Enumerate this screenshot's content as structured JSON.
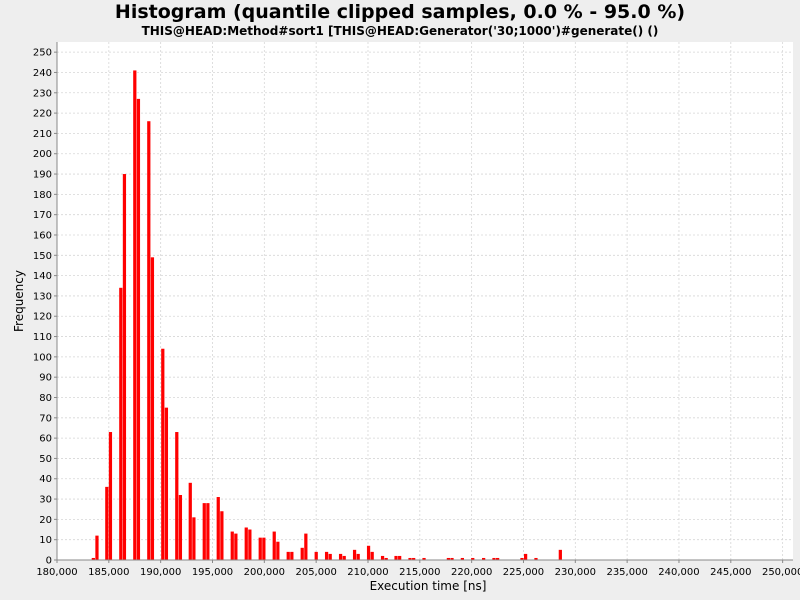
{
  "chart_data": {
    "type": "bar",
    "title": "Histogram (quantile clipped samples, 0.0 % - 95.0 %)",
    "subtitle": "THIS@HEAD:Method#sort1 [THIS@HEAD:Generator('30;1000')#generate() ()",
    "xlabel": "Execution time [ns]",
    "ylabel": "Frequency",
    "xlim": [
      180000,
      251000
    ],
    "ylim": [
      0,
      255
    ],
    "bar_color": "#ff0000",
    "grid": true,
    "x_ticks": [
      180000,
      185000,
      190000,
      195000,
      200000,
      205000,
      210000,
      215000,
      220000,
      225000,
      230000,
      235000,
      240000,
      245000,
      250000
    ],
    "x_tick_labels": [
      "180,000",
      "185,000",
      "190,000",
      "195,000",
      "200,000",
      "205,000",
      "210,000",
      "215,000",
      "220,000",
      "225,000",
      "230,000",
      "235,000",
      "240,000",
      "245,000",
      "250,000"
    ],
    "y_ticks": [
      0,
      10,
      20,
      30,
      40,
      50,
      60,
      70,
      80,
      90,
      100,
      110,
      120,
      130,
      140,
      150,
      160,
      170,
      180,
      190,
      200,
      210,
      220,
      230,
      240,
      250
    ],
    "bin_width": 350,
    "bars": [
      {
        "x": 183350,
        "y": 1
      },
      {
        "x": 183700,
        "y": 12
      },
      {
        "x": 184650,
        "y": 36
      },
      {
        "x": 185000,
        "y": 63
      },
      {
        "x": 186000,
        "y": 134
      },
      {
        "x": 186350,
        "y": 190
      },
      {
        "x": 187350,
        "y": 241
      },
      {
        "x": 187700,
        "y": 227
      },
      {
        "x": 188700,
        "y": 216
      },
      {
        "x": 189050,
        "y": 149
      },
      {
        "x": 190050,
        "y": 104
      },
      {
        "x": 190400,
        "y": 75
      },
      {
        "x": 191400,
        "y": 63
      },
      {
        "x": 191750,
        "y": 32
      },
      {
        "x": 192700,
        "y": 38
      },
      {
        "x": 193050,
        "y": 21
      },
      {
        "x": 194050,
        "y": 28
      },
      {
        "x": 194400,
        "y": 28
      },
      {
        "x": 195400,
        "y": 31
      },
      {
        "x": 195750,
        "y": 24
      },
      {
        "x": 196750,
        "y": 14
      },
      {
        "x": 197100,
        "y": 13
      },
      {
        "x": 198100,
        "y": 16
      },
      {
        "x": 198450,
        "y": 15
      },
      {
        "x": 199450,
        "y": 11
      },
      {
        "x": 199800,
        "y": 11
      },
      {
        "x": 200800,
        "y": 14
      },
      {
        "x": 201150,
        "y": 9
      },
      {
        "x": 202150,
        "y": 4
      },
      {
        "x": 202500,
        "y": 4
      },
      {
        "x": 203500,
        "y": 6
      },
      {
        "x": 203850,
        "y": 13
      },
      {
        "x": 204850,
        "y": 4
      },
      {
        "x": 205850,
        "y": 4
      },
      {
        "x": 206200,
        "y": 3
      },
      {
        "x": 207200,
        "y": 3
      },
      {
        "x": 207550,
        "y": 2
      },
      {
        "x": 208550,
        "y": 5
      },
      {
        "x": 208900,
        "y": 3
      },
      {
        "x": 209900,
        "y": 7
      },
      {
        "x": 210250,
        "y": 4
      },
      {
        "x": 211250,
        "y": 2
      },
      {
        "x": 211600,
        "y": 1
      },
      {
        "x": 212550,
        "y": 2
      },
      {
        "x": 212900,
        "y": 2
      },
      {
        "x": 213900,
        "y": 1
      },
      {
        "x": 214250,
        "y": 1
      },
      {
        "x": 215250,
        "y": 1
      },
      {
        "x": 217600,
        "y": 1
      },
      {
        "x": 217950,
        "y": 1
      },
      {
        "x": 218950,
        "y": 1
      },
      {
        "x": 219950,
        "y": 1
      },
      {
        "x": 221000,
        "y": 1
      },
      {
        "x": 222000,
        "y": 1
      },
      {
        "x": 222350,
        "y": 1
      },
      {
        "x": 224700,
        "y": 1
      },
      {
        "x": 225050,
        "y": 3
      },
      {
        "x": 226050,
        "y": 1
      },
      {
        "x": 228400,
        "y": 5
      }
    ]
  }
}
